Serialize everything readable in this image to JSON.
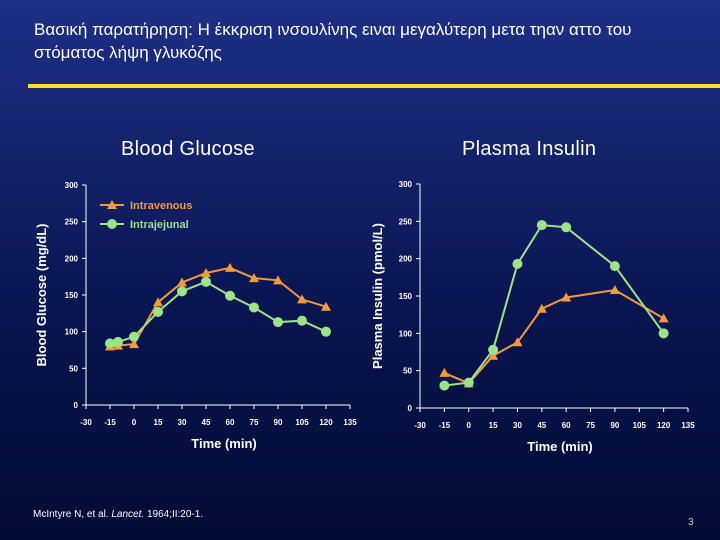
{
  "slide": {
    "title": "Βασική παρατήρηση: Η έκκριση ινσουλίνης ειναι μεγαλύτερη μετα τηαν αττο του στόματος λήψη γλυκόζης",
    "citation_prefix": "McIntyre N, et al. ",
    "citation_journal": "Lancet.",
    "citation_suffix": " 1964;II:20-1.",
    "page_number": "3"
  },
  "colors": {
    "intravenous": "#f29a3c",
    "intrajejunal": "#9ce38a",
    "accent_rule": "#f0e12a",
    "axis": "#ffffff"
  },
  "chart_data": [
    {
      "type": "line",
      "panel_title": "Blood Glucose",
      "xlabel": "Time (min)",
      "ylabel": "Blood Glucose (mg/dL)",
      "xlim": [
        -30,
        135
      ],
      "ylim": [
        0,
        300
      ],
      "xticks": [
        -30,
        -15,
        0,
        15,
        30,
        45,
        60,
        75,
        90,
        105,
        120,
        135
      ],
      "yticks": [
        0,
        50,
        100,
        150,
        200,
        250,
        300
      ],
      "legend": "top-left",
      "series": [
        {
          "name": "Intravenous",
          "marker": "triangle",
          "x": [
            -15,
            -10,
            0,
            15,
            30,
            45,
            60,
            75,
            90,
            105,
            120
          ],
          "y": [
            80,
            81,
            83,
            140,
            167,
            180,
            187,
            173,
            170,
            144,
            134
          ]
        },
        {
          "name": "Intrajejunal",
          "marker": "circle",
          "x": [
            -15,
            -10,
            0,
            15,
            30,
            45,
            60,
            75,
            90,
            105,
            120
          ],
          "y": [
            84,
            86,
            93,
            127,
            155,
            168,
            149,
            133,
            113,
            115,
            100
          ]
        }
      ]
    },
    {
      "type": "line",
      "panel_title": "Plasma Insulin",
      "xlabel": "Time (min)",
      "ylabel": "Plasma Insulin (pmol/L)",
      "xlim": [
        -30,
        135
      ],
      "ylim": [
        0,
        300
      ],
      "xticks": [
        -30,
        -15,
        0,
        15,
        30,
        45,
        60,
        75,
        90,
        105,
        120,
        135
      ],
      "yticks": [
        0,
        50,
        100,
        150,
        200,
        250,
        300
      ],
      "legend": "none",
      "series": [
        {
          "name": "Intravenous",
          "marker": "triangle",
          "x": [
            -15,
            0,
            15,
            30,
            45,
            60,
            90,
            120
          ],
          "y": [
            47,
            33,
            70,
            88,
            133,
            148,
            158,
            120
          ]
        },
        {
          "name": "Intrajejunal",
          "marker": "circle",
          "x": [
            -15,
            0,
            15,
            30,
            45,
            60,
            90,
            120
          ],
          "y": [
            30,
            34,
            78,
            193,
            245,
            242,
            190,
            100
          ]
        }
      ]
    }
  ]
}
